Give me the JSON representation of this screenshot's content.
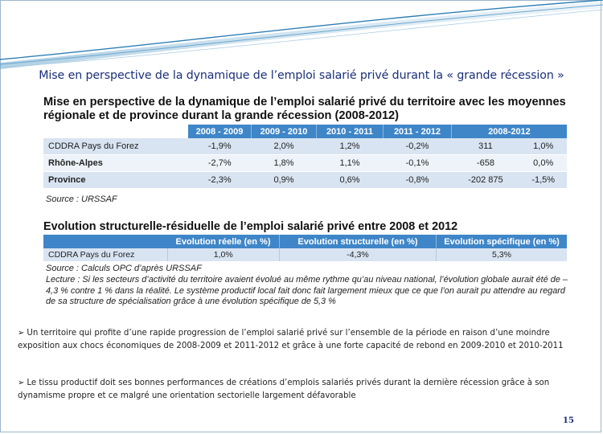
{
  "slide": {
    "title": "Mise en perspective de la dynamique de l’emploi salarié privé durant la « grande récession »",
    "page_number": "15"
  },
  "figure": {
    "title": "Mise en perspective de la dynamique de l’emploi salarié privé du territoire avec les moyennes régionale et de province durant la grande récession (2008-2012)",
    "table1": {
      "headers": [
        "",
        "2008 - 2009",
        "2009 - 2010",
        "2010 - 2011",
        "2011 - 2012",
        "2008-2012"
      ],
      "rows": [
        {
          "label": "CDDRA Pays du Forez",
          "cells": [
            "-1,9%",
            "2,0%",
            "1,2%",
            "-0,2%",
            "311",
            "1,0%"
          ]
        },
        {
          "label": "Rhône-Alpes",
          "cells": [
            "-2,7%",
            "1,8%",
            "1,1%",
            "-0,1%",
            "-658",
            "0,0%"
          ]
        },
        {
          "label": "Province",
          "cells": [
            "-2,3%",
            "0,9%",
            "0,6%",
            "-0,8%",
            "-202 875",
            "-1,5%"
          ]
        }
      ],
      "source": "Source : URSSAF"
    },
    "section2_title": "Evolution structurelle-résiduelle de l’emploi salarié privé entre 2008 et 2012",
    "table2": {
      "headers": [
        "",
        "Evolution réelle (en %)",
        "Evolution structurelle (en %)",
        "Evolution spécifique (en %)"
      ],
      "rows": [
        {
          "label": "CDDRA Pays du Forez",
          "cells": [
            "1,0%",
            "-4,3%",
            "5,3%"
          ]
        }
      ],
      "source": "Source : Calculs OPC d’après URSSAF"
    },
    "reading_note": "Lecture : Si les secteurs d’activité du territoire avaient évolué au même rythme qu’au niveau national, l’évolution globale aurait été de – 4,3 % contre 1 % dans la réalité. Le système productif local fait donc fait largement mieux que ce que l’on aurait pu attendre au regard de sa structure de spécialisation grâce à une évolution spécifique de 5,3 %"
  },
  "bullets": [
    {
      "icon": "arrow-bullet-icon",
      "text": "Un territoire qui profite d’une rapide progression de l’emploi salarié privé sur l’ensemble de la période en raison d’une moindre exposition aux chocs économiques de 2008-2009 et 2011-2012 et grâce à une forte capacité de rebond en 2009-2010 et 2010-2011"
    },
    {
      "icon": "arrow-bullet-icon",
      "text": "Le tissu productif doit ses bonnes performances de créations d’emplois salariés privés durant la dernière récession grâce à son dynamisme propre et ce malgré une orientation sectorielle largement défavorable"
    }
  ],
  "colors": {
    "header_blue": "#3f86c8",
    "row_blue": "#d8e4f2",
    "title_navy": "#1a2f7a"
  }
}
